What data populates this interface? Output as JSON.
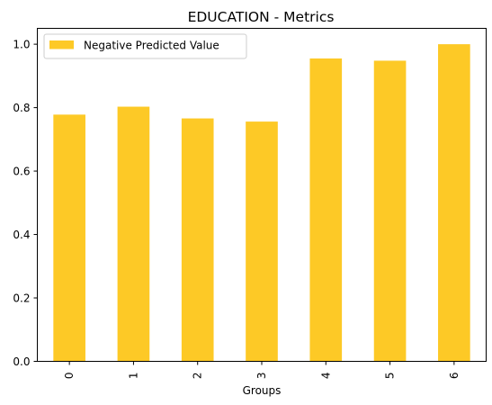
{
  "chart_data": {
    "type": "bar",
    "title": "EDUCATION - Metrics",
    "xlabel": "Groups",
    "ylabel": "",
    "categories": [
      "0",
      "1",
      "2",
      "3",
      "4",
      "5",
      "6"
    ],
    "series": [
      {
        "name": "Negative Predicted Value",
        "values": [
          0.778,
          0.803,
          0.766,
          0.756,
          0.955,
          0.948,
          1.0
        ],
        "color": "#fdc926"
      }
    ],
    "ylim": [
      0,
      1.05
    ],
    "yticks": [
      "0.0",
      "0.2",
      "0.4",
      "0.6",
      "0.8",
      "1.0"
    ],
    "grid": false,
    "legend_position": "top-left"
  }
}
